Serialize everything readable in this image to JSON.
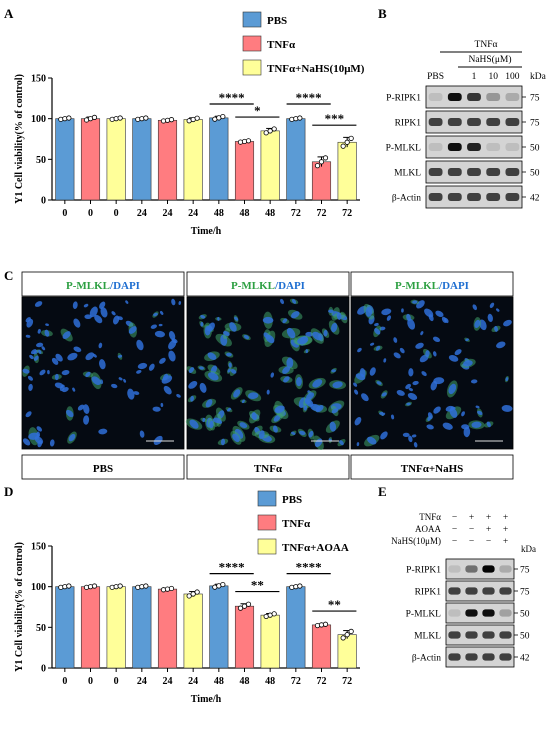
{
  "panels": {
    "A": "A",
    "B": "B",
    "C": "C",
    "D": "D",
    "E": "E"
  },
  "panelA": {
    "chart_data": {
      "type": "bar",
      "ylabel": "Y1 Cell viability(% of control)",
      "xlabel": "Time/h",
      "ylim": [
        0,
        150
      ],
      "yticks": [
        0,
        50,
        100,
        150
      ],
      "categories": [
        "0",
        "0",
        "0",
        "24",
        "24",
        "24",
        "48",
        "48",
        "48",
        "72",
        "72",
        "72"
      ],
      "values": [
        100,
        100,
        100,
        100,
        98,
        99,
        101,
        72,
        85,
        100,
        47,
        71
      ],
      "errors": [
        1,
        2,
        1,
        1,
        1,
        2,
        2,
        1,
        3,
        1,
        6,
        6
      ],
      "groups": [
        0,
        1,
        2,
        0,
        1,
        2,
        0,
        1,
        2,
        0,
        1,
        2
      ],
      "legend": [
        "PBS",
        "TNFα",
        "TNFα+NaHS(10μM)"
      ],
      "colors": [
        "#5b9bd5",
        "#ff7c80",
        "#ffff99"
      ],
      "significance": [
        {
          "from": 6,
          "to": 7,
          "label": "****",
          "y": 118
        },
        {
          "from": 7,
          "to": 8,
          "label": "*",
          "y": 102
        },
        {
          "from": 9,
          "to": 10,
          "label": "****",
          "y": 118
        },
        {
          "from": 10,
          "to": 11,
          "label": "***",
          "y": 92
        }
      ]
    }
  },
  "panelB": {
    "top_label": "TNFα",
    "nahs_label": "NaHS(μM)",
    "lanes": [
      "PBS",
      "",
      "1",
      "10",
      "100"
    ],
    "kda": "kDa",
    "rows": [
      {
        "name": "P-RIPK1",
        "kda": "75",
        "int": [
          0.05,
          0.95,
          0.75,
          0.25,
          0.15
        ]
      },
      {
        "name": "RIPK1",
        "kda": "75",
        "int": [
          0.7,
          0.7,
          0.7,
          0.7,
          0.7
        ]
      },
      {
        "name": "P-MLKL",
        "kda": "50",
        "int": [
          0.05,
          0.95,
          0.85,
          0.05,
          0.05
        ]
      },
      {
        "name": "MLKL",
        "kda": "50",
        "int": [
          0.7,
          0.7,
          0.7,
          0.7,
          0.7
        ]
      },
      {
        "name": "β-Actin",
        "kda": "42",
        "int": [
          0.7,
          0.7,
          0.7,
          0.7,
          0.7
        ]
      }
    ]
  },
  "panelC": {
    "images": [
      {
        "title_a": "P-MLKL",
        "title_b": "/DAPI",
        "caption": "PBS",
        "green": 0.15
      },
      {
        "title_a": "P-MLKL",
        "title_b": "/DAPI",
        "caption": "TNFα",
        "green": 0.9
      },
      {
        "title_a": "P-MLKL",
        "title_b": "/DAPI",
        "caption": "TNFα+NaHS",
        "green": 0.2
      }
    ]
  },
  "panelD": {
    "chart_data": {
      "type": "bar",
      "ylabel": "Y1 Cell viability(% of control)",
      "xlabel": "Time/h",
      "ylim": [
        0,
        150
      ],
      "yticks": [
        0,
        50,
        100,
        150
      ],
      "categories": [
        "0",
        "0",
        "0",
        "24",
        "24",
        "24",
        "48",
        "48",
        "48",
        "72",
        "72",
        "72"
      ],
      "values": [
        100,
        100,
        100,
        100,
        97,
        91,
        101,
        76,
        65,
        100,
        53,
        41
      ],
      "errors": [
        1,
        1,
        1,
        1,
        1,
        3,
        2,
        3,
        2,
        1,
        1,
        5
      ],
      "groups": [
        0,
        1,
        2,
        0,
        1,
        2,
        0,
        1,
        2,
        0,
        1,
        2
      ],
      "legend": [
        "PBS",
        "TNFα",
        "TNFα+AOAA"
      ],
      "colors": [
        "#5b9bd5",
        "#ff7c80",
        "#ffff99"
      ],
      "significance": [
        {
          "from": 6,
          "to": 7,
          "label": "****",
          "y": 116
        },
        {
          "from": 7,
          "to": 8,
          "label": "**",
          "y": 94
        },
        {
          "from": 9,
          "to": 10,
          "label": "****",
          "y": 116
        },
        {
          "from": 10,
          "to": 11,
          "label": "**",
          "y": 70
        }
      ]
    }
  },
  "panelE": {
    "conditions": [
      {
        "name": "TNFα",
        "signs": [
          "−",
          "+",
          "+",
          "+"
        ]
      },
      {
        "name": "AOAA",
        "signs": [
          "−",
          "−",
          "+",
          "+"
        ]
      },
      {
        "name": "NaHS(10μM)",
        "signs": [
          "−",
          "−",
          "−",
          "+"
        ]
      }
    ],
    "kda": "kDa",
    "rows": [
      {
        "name": "P-RIPK1",
        "kda": "75",
        "int": [
          0.05,
          0.45,
          1.0,
          0.15
        ]
      },
      {
        "name": "RIPK1",
        "kda": "75",
        "int": [
          0.7,
          0.7,
          0.7,
          0.7
        ]
      },
      {
        "name": "P-MLKL",
        "kda": "50",
        "int": [
          0.05,
          0.95,
          0.95,
          0.2
        ]
      },
      {
        "name": "MLKL",
        "kda": "50",
        "int": [
          0.7,
          0.7,
          0.7,
          0.7
        ]
      },
      {
        "name": "β-Actin",
        "kda": "42",
        "int": [
          0.7,
          0.7,
          0.7,
          0.7
        ]
      }
    ]
  }
}
